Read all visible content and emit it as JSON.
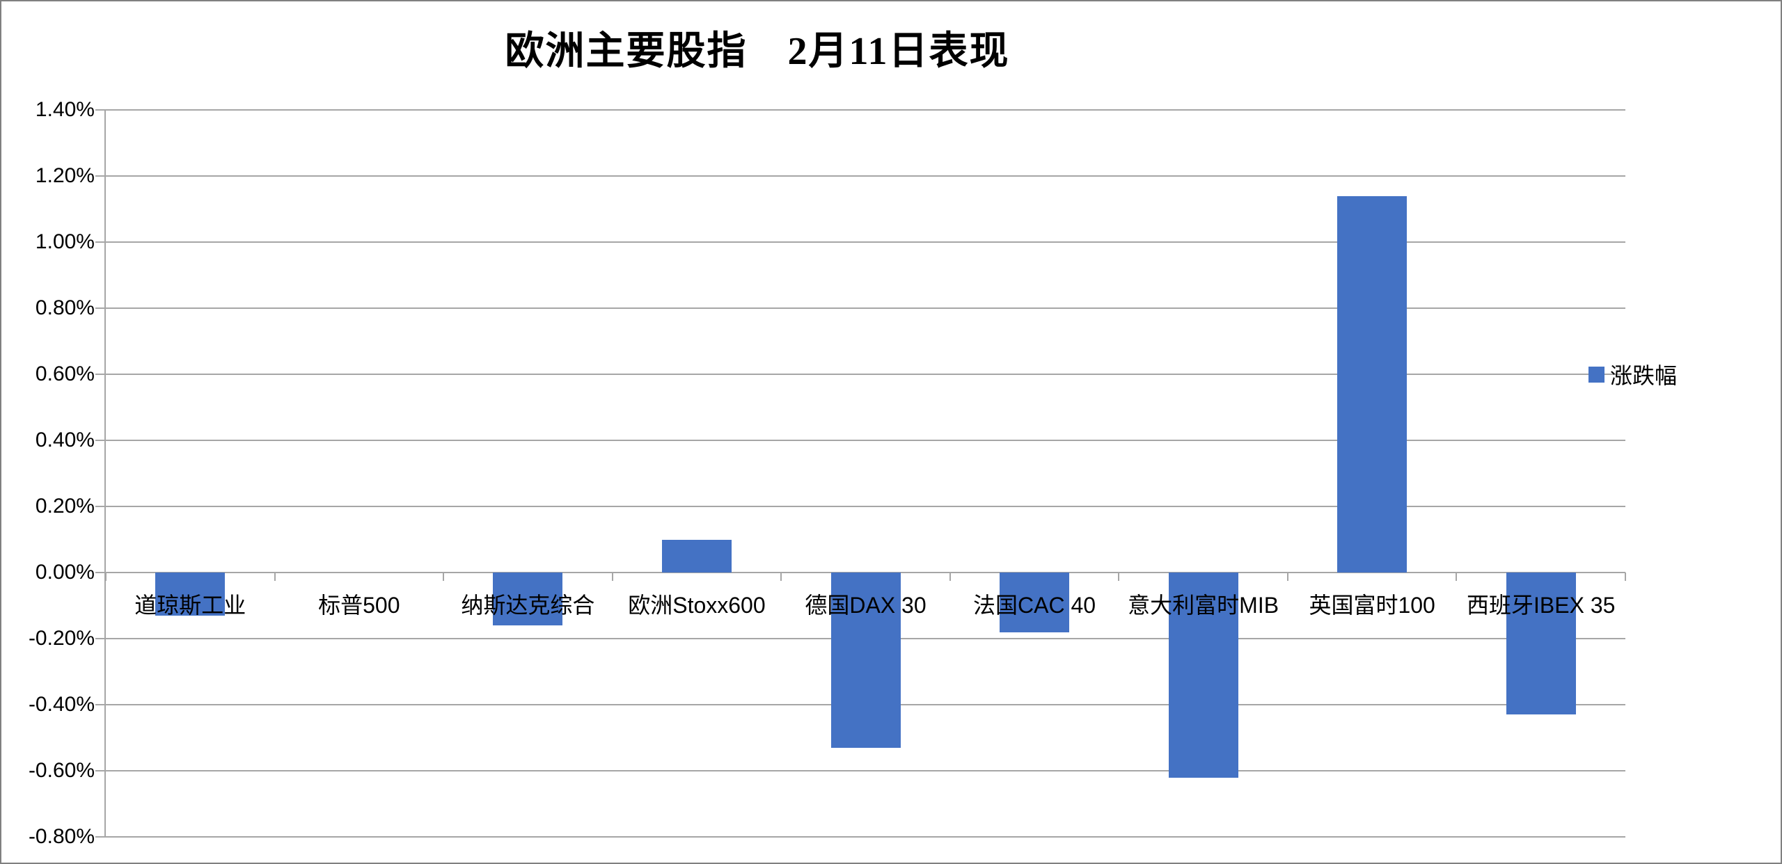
{
  "chart_data": {
    "type": "bar",
    "title": "欧洲主要股指　2月11日表现",
    "categories": [
      "道琼斯工业",
      "标普500",
      "纳斯达克综合",
      "欧洲Stoxx600",
      "德国DAX 30",
      "法国CAC 40",
      "意大利富时MIB",
      "英国富时100",
      "西班牙IBEX 35"
    ],
    "values": [
      -0.13,
      0.0,
      -0.16,
      0.1,
      -0.53,
      -0.18,
      -0.62,
      1.14,
      -0.43
    ],
    "unit": "%",
    "xlabel": "",
    "ylabel": "",
    "ylim": [
      -0.8,
      1.4
    ],
    "ytick_step": 0.2,
    "ytick_values": [
      1.4,
      1.2,
      1.0,
      0.8,
      0.6,
      0.4,
      0.2,
      0.0,
      -0.2,
      -0.4,
      -0.6,
      -0.8
    ],
    "ytick_labels": [
      "1.40%",
      "1.20%",
      "1.00%",
      "0.80%",
      "0.60%",
      "0.40%",
      "0.20%",
      "0.00%",
      "-0.20%",
      "-0.40%",
      "-0.60%",
      "-0.80%"
    ],
    "grid": true,
    "legend": {
      "label": "涨跌幅",
      "position": "right"
    },
    "colors": {
      "bar": "#4472C4",
      "gridline": "#A6A6A6",
      "axis": "#A6A6A6",
      "border": "#808080",
      "text": "#000000"
    }
  }
}
